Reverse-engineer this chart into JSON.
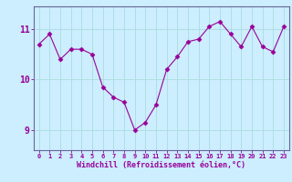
{
  "x": [
    0,
    1,
    2,
    3,
    4,
    5,
    6,
    7,
    8,
    9,
    10,
    11,
    12,
    13,
    14,
    15,
    16,
    17,
    18,
    19,
    20,
    21,
    22,
    23
  ],
  "y": [
    10.7,
    10.9,
    10.4,
    10.6,
    10.6,
    10.5,
    9.85,
    9.65,
    9.55,
    9.0,
    9.15,
    9.5,
    10.2,
    10.45,
    10.75,
    10.8,
    11.05,
    11.15,
    10.9,
    10.65,
    11.05,
    10.65,
    10.55,
    11.05
  ],
  "line_color": "#990099",
  "marker": "D",
  "marker_size": 2.5,
  "bg_color": "#cceeff",
  "grid_color": "#aadddd",
  "xlabel": "Windchill (Refroidissement éolien,°C)",
  "ytick_labels": [
    "9",
    "10",
    "11"
  ],
  "ytick_values": [
    9,
    10,
    11
  ],
  "ylim": [
    8.6,
    11.45
  ],
  "xlim": [
    -0.5,
    23.5
  ],
  "xtick_values": [
    0,
    1,
    2,
    3,
    4,
    5,
    6,
    7,
    8,
    9,
    10,
    11,
    12,
    13,
    14,
    15,
    16,
    17,
    18,
    19,
    20,
    21,
    22,
    23
  ],
  "tick_color": "#990099",
  "axis_color": "#990099",
  "spine_color": "#666699"
}
